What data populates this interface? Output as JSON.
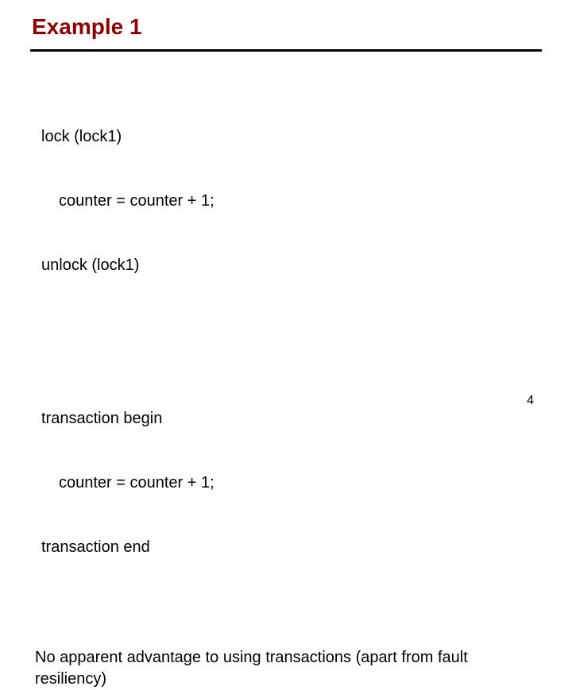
{
  "title": {
    "text": "Example 1",
    "color": "#8b0000",
    "rule_color": "#000000"
  },
  "code1": {
    "line1": "lock (lock1)",
    "line2": "counter = counter + 1;",
    "line3": "unlock (lock1)"
  },
  "code2": {
    "line1": "transaction begin",
    "line2": "counter = counter + 1;",
    "line3": "transaction end"
  },
  "note": "No apparent advantage to using transactions (apart from fault resiliency)",
  "page_number": "4",
  "text_color": "#000000"
}
